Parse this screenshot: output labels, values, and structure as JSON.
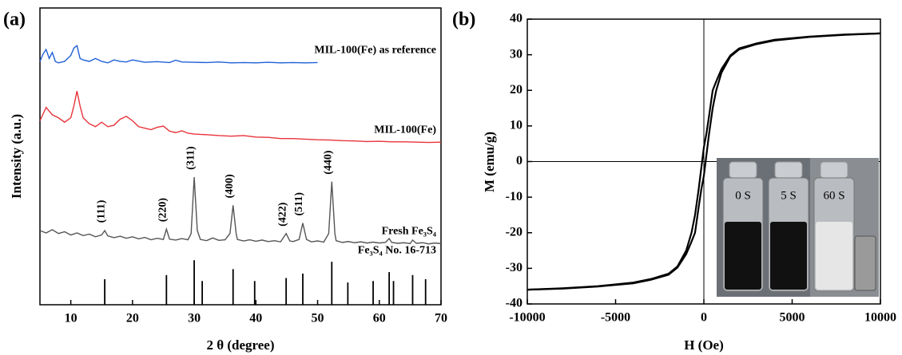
{
  "chart_data": [
    {
      "type": "line",
      "panel_label": "(a)",
      "x_label": "2 θ (degree)",
      "y_label": "Intensity (a.u.)",
      "xlim": [
        5,
        70
      ],
      "xticks": [
        10,
        20,
        30,
        40,
        50,
        60,
        70
      ],
      "ylim": [
        0,
        100
      ],
      "series": [
        {
          "name": "MIL-100(Fe) as reference",
          "color": "#1f5fd6",
          "x": [
            5,
            5.5,
            6,
            6.5,
            7,
            7.5,
            8,
            9,
            10,
            10.5,
            11,
            11.5,
            12,
            13,
            14,
            15,
            16,
            17,
            18,
            19,
            20,
            22,
            24,
            26,
            27,
            28,
            30,
            32,
            34,
            36,
            38,
            40,
            42,
            44,
            46,
            48,
            50
          ],
          "values": [
            82,
            84.5,
            86,
            83,
            85,
            82,
            81.5,
            82,
            84,
            86.5,
            87.3,
            83,
            82.5,
            82,
            83,
            82,
            81.5,
            82.5,
            82,
            81.8,
            82.5,
            81.7,
            81.9,
            81.6,
            82.4,
            81.8,
            81.7,
            81.6,
            81.8,
            81.5,
            81.6,
            81.5,
            81.7,
            81.5,
            81.6,
            81.5,
            81.6
          ]
        },
        {
          "name": "MIL-100(Fe)",
          "color": "#e8333a",
          "x": [
            5,
            6,
            7,
            8,
            9,
            10,
            10.5,
            11,
            11.5,
            12,
            13,
            14,
            15,
            16,
            17,
            18,
            19,
            20,
            21,
            22,
            23,
            24,
            25,
            26,
            27,
            28,
            29,
            30,
            32,
            34,
            36,
            38,
            40,
            42,
            44,
            46,
            48,
            50,
            52,
            54,
            56,
            58,
            60,
            62,
            64,
            66,
            68,
            70
          ],
          "values": [
            62,
            66.5,
            64,
            63,
            61.5,
            63,
            67,
            72,
            67,
            63,
            61,
            60,
            61.5,
            60,
            60.5,
            62.5,
            63.5,
            62,
            60,
            59.5,
            59,
            59.8,
            60.2,
            58.5,
            58,
            58.6,
            57.8,
            57.5,
            57.3,
            57,
            56.8,
            57,
            56.5,
            56.4,
            56,
            56,
            55.8,
            55.6,
            55.5,
            55.3,
            55.2,
            55,
            55.1,
            54.9,
            54.9,
            54.8,
            54.7,
            54.8
          ]
        },
        {
          "name": "Fresh Fe₃S₄",
          "color": "#555555",
          "x": [
            5,
            6,
            7,
            8,
            9,
            10,
            11,
            12,
            13,
            14,
            15,
            15.5,
            16,
            17,
            18,
            19,
            20,
            21,
            22,
            23,
            24,
            25,
            25.5,
            26,
            27,
            28,
            29,
            29.5,
            30,
            30.5,
            31,
            32,
            33,
            34,
            35,
            35.8,
            36.3,
            36.8,
            37,
            38,
            39,
            40,
            41,
            42,
            43,
            44,
            44.9,
            45.5,
            46,
            47,
            47.6,
            48.2,
            49,
            50,
            51,
            51.8,
            52.3,
            52.8,
            53,
            54,
            55,
            56,
            57,
            58,
            59,
            60,
            61,
            61.6,
            62,
            63,
            64,
            65,
            65.4,
            66,
            67,
            68,
            69,
            70
          ],
          "values": [
            25,
            24.2,
            25.3,
            24,
            24.6,
            23.5,
            24.2,
            23.3,
            23.8,
            22.9,
            23.5,
            25,
            23.2,
            22.6,
            23.1,
            22.4,
            22.9,
            22.2,
            22.7,
            21.9,
            22.4,
            22,
            25.5,
            22.1,
            21.8,
            22.3,
            21.9,
            24,
            43,
            25,
            22,
            21.6,
            22.5,
            21.7,
            21.9,
            24,
            33.5,
            24,
            22,
            21.5,
            21.9,
            21.4,
            21.8,
            21.3,
            21.6,
            21.2,
            24,
            21.5,
            21.3,
            22,
            27.5,
            22,
            21.2,
            21.5,
            21.1,
            24,
            41.5,
            24,
            21.6,
            21,
            21.3,
            20.9,
            21.2,
            20.8,
            21.1,
            20.8,
            21,
            22.3,
            21,
            20.7,
            20.9,
            20.6,
            21.8,
            20.7,
            20.9,
            20.5,
            20.8,
            20.6
          ]
        }
      ],
      "reference_sticks": {
        "name": "Fe₃S₄ No. 16-713",
        "color": "#000000",
        "x": [
          15.5,
          25.5,
          30.0,
          31.3,
          36.3,
          39.8,
          44.9,
          47.6,
          52.3,
          54.9,
          59.0,
          61.6,
          62.3,
          65.4,
          67.5
        ],
        "values": [
          8.6,
          10,
          15,
          8,
          12,
          8,
          9,
          10.5,
          14.5,
          7.5,
          8,
          11,
          8,
          10,
          8.6
        ]
      },
      "peak_labels": {
        "x": [
          15.5,
          25.5,
          30.0,
          36.3,
          44.9,
          47.6,
          52.3
        ],
        "labels": [
          "(111)",
          "(220)",
          "(311)",
          "(400)",
          "(422)",
          "(511)",
          "(440)"
        ]
      }
    },
    {
      "type": "hysteresis",
      "panel_label": "(b)",
      "x_label": "H (Oe)",
      "y_label": "M (emu/g)",
      "xlim": [
        -10000,
        10000
      ],
      "xticks": [
        -10000,
        -5000,
        0,
        5000,
        10000
      ],
      "ylim": [
        -40,
        40
      ],
      "yticks": [
        -40,
        -30,
        -20,
        -10,
        0,
        10,
        20,
        30,
        40
      ],
      "x": [
        -10000,
        -8000,
        -6000,
        -4000,
        -3000,
        -2000,
        -1500,
        -1000,
        -700,
        -500,
        -300,
        -150,
        0,
        150,
        300,
        500,
        700,
        1000,
        1500,
        2000,
        3000,
        4000,
        6000,
        8000,
        10000
      ],
      "series": [
        {
          "color": "#000000",
          "values": [
            -36,
            -35.6,
            -35,
            -34,
            -33,
            -31.5,
            -29.5,
            -25,
            -20,
            -15,
            -8,
            -2,
            4,
            8,
            13,
            20,
            22.5,
            26,
            29.8,
            31.8,
            33.2,
            34.2,
            35.1,
            35.7,
            36
          ]
        },
        {
          "color": "#000000",
          "values": [
            -36,
            -35.7,
            -35.1,
            -34.2,
            -33.2,
            -31.8,
            -29.8,
            -26,
            -22.5,
            -20,
            -13,
            -8,
            -4,
            2,
            8,
            15,
            20,
            25,
            29.5,
            31.5,
            33,
            34,
            35,
            35.6,
            36
          ]
        }
      ],
      "inset_labels": [
        "0 S",
        "5 S",
        "60 S"
      ]
    }
  ]
}
